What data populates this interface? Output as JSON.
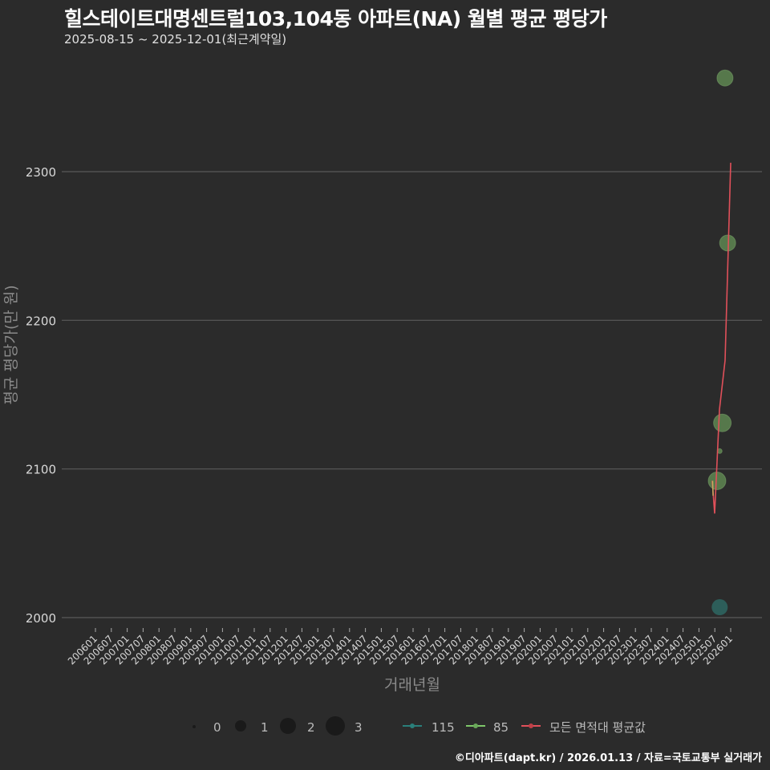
{
  "header": {
    "title": "힐스테이트대명센트럴103,104동 아파트(NA) 월별 평균 평당가",
    "subtitle": "2025-08-15 ~ 2025-12-01(최근계약일)"
  },
  "footer": {
    "credit": "©디아파트(dapt.kr) / 2026.01.13 / 자료=국토교통부 실거래가"
  },
  "colors": {
    "background": "#2b2b2b",
    "grid": "#5a5a5a",
    "series_115": "#2a7f7a",
    "series_85": "#7fc86a",
    "series_avg": "#e0505a"
  },
  "chart_data": {
    "type": "scatter",
    "title": "힐스테이트대명센트럴103,104동 아파트(NA) 월별 평균 평당가",
    "subtitle": "2025-08-15 ~ 2025-12-01(최근계약일)",
    "xlabel": "거래년월",
    "ylabel": "평균 평당가(만 원)",
    "ylim": [
      1985,
      2370
    ],
    "yticks": [
      2000,
      2100,
      2200,
      2300
    ],
    "grid": true,
    "xticks": [
      "200601",
      "200607",
      "200701",
      "200707",
      "200801",
      "200807",
      "200901",
      "200907",
      "201001",
      "201007",
      "201101",
      "201107",
      "201201",
      "201207",
      "201301",
      "201307",
      "201401",
      "201407",
      "201501",
      "201507",
      "201601",
      "201607",
      "201701",
      "201707",
      "201801",
      "201807",
      "201901",
      "201907",
      "202001",
      "202007",
      "202101",
      "202107",
      "202201",
      "202207",
      "202301",
      "202307",
      "202401",
      "202407",
      "202501",
      "202507",
      "202601"
    ],
    "size_legend": {
      "title": "",
      "values": [
        0,
        1,
        2,
        3
      ]
    },
    "series": [
      {
        "name": "115",
        "type": "point",
        "points": [
          {
            "x": "202509",
            "y": 2007,
            "size": 1
          }
        ]
      },
      {
        "name": "85",
        "type": "point+line",
        "points": [
          {
            "x": "202508",
            "y": 2092,
            "size": 2
          },
          {
            "x": "202509",
            "y": 2112,
            "size": 0
          },
          {
            "x": "202510",
            "y": 2131,
            "size": 2
          },
          {
            "x": "202511",
            "y": 2363,
            "size": 1
          },
          {
            "x": "202512",
            "y": 2252,
            "size": 1
          }
        ]
      },
      {
        "name": "모든 면적대 평균값",
        "type": "line",
        "points": [
          {
            "x": "202508",
            "y": 2092
          },
          {
            "x": "202509",
            "y": 2070
          },
          {
            "x": "202510",
            "y": 2140
          },
          {
            "x": "202511",
            "y": 2173
          },
          {
            "x": "202512",
            "y": 2306
          }
        ]
      }
    ],
    "legend": {
      "position": "bottom",
      "entries": [
        "0",
        "1",
        "2",
        "3",
        "115",
        "85",
        "모든 면적대 평균값"
      ]
    }
  },
  "legend": {
    "sizes": [
      "0",
      "1",
      "2",
      "3"
    ],
    "s115": "115",
    "s85": "85",
    "avg": "모든 면적대 평균값"
  },
  "axis": {
    "xlabel": "거래년월",
    "ylabel": "평균 평당가(만 원)"
  }
}
